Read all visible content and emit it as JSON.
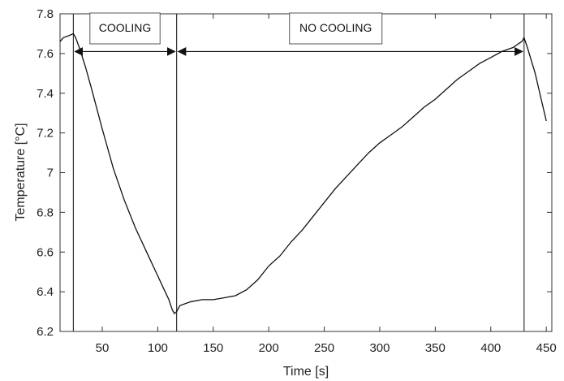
{
  "chart_data": {
    "type": "line",
    "title": "",
    "xlabel": "Time [s]",
    "ylabel": "Temperature [°C]",
    "xlim": [
      12,
      455
    ],
    "ylim": [
      6.2,
      7.8
    ],
    "xticks": [
      50,
      100,
      150,
      200,
      250,
      300,
      350,
      400,
      450
    ],
    "yticks": [
      6.2,
      6.4,
      6.6,
      6.8,
      7,
      7.2,
      7.4,
      7.6,
      7.8
    ],
    "grid": false,
    "legend": "none",
    "series": [
      {
        "x": [
          12,
          15,
          20,
          24,
          26,
          30,
          35,
          40,
          50,
          60,
          70,
          80,
          90,
          100,
          105,
          110,
          113,
          115,
          117,
          120,
          130,
          140,
          150,
          160,
          170,
          180,
          190,
          200,
          210,
          220,
          230,
          240,
          250,
          260,
          270,
          280,
          290,
          300,
          310,
          320,
          330,
          340,
          350,
          360,
          370,
          380,
          390,
          400,
          410,
          420,
          425,
          428,
          430,
          433,
          440,
          445,
          450
        ],
        "y": [
          7.66,
          7.68,
          7.69,
          7.7,
          7.68,
          7.62,
          7.53,
          7.43,
          7.22,
          7.02,
          6.86,
          6.72,
          6.6,
          6.48,
          6.42,
          6.36,
          6.31,
          6.29,
          6.3,
          6.33,
          6.35,
          6.36,
          6.36,
          6.37,
          6.38,
          6.41,
          6.46,
          6.53,
          6.58,
          6.65,
          6.71,
          6.78,
          6.85,
          6.92,
          6.98,
          7.04,
          7.1,
          7.15,
          7.19,
          7.23,
          7.28,
          7.33,
          7.37,
          7.42,
          7.47,
          7.51,
          7.55,
          7.58,
          7.61,
          7.63,
          7.65,
          7.66,
          7.68,
          7.63,
          7.5,
          7.38,
          7.26
        ]
      }
    ],
    "vlines": [
      24,
      117,
      430
    ],
    "annotations": [
      {
        "label": "COOLING",
        "x_start": 24,
        "x_end": 117,
        "y": 7.61
      },
      {
        "label": "NO COOLING",
        "x_start": 117,
        "x_end": 430,
        "y": 7.61
      }
    ],
    "colors": {
      "line": "#111111",
      "axis": "#333333",
      "box_edge": "#555555"
    }
  }
}
